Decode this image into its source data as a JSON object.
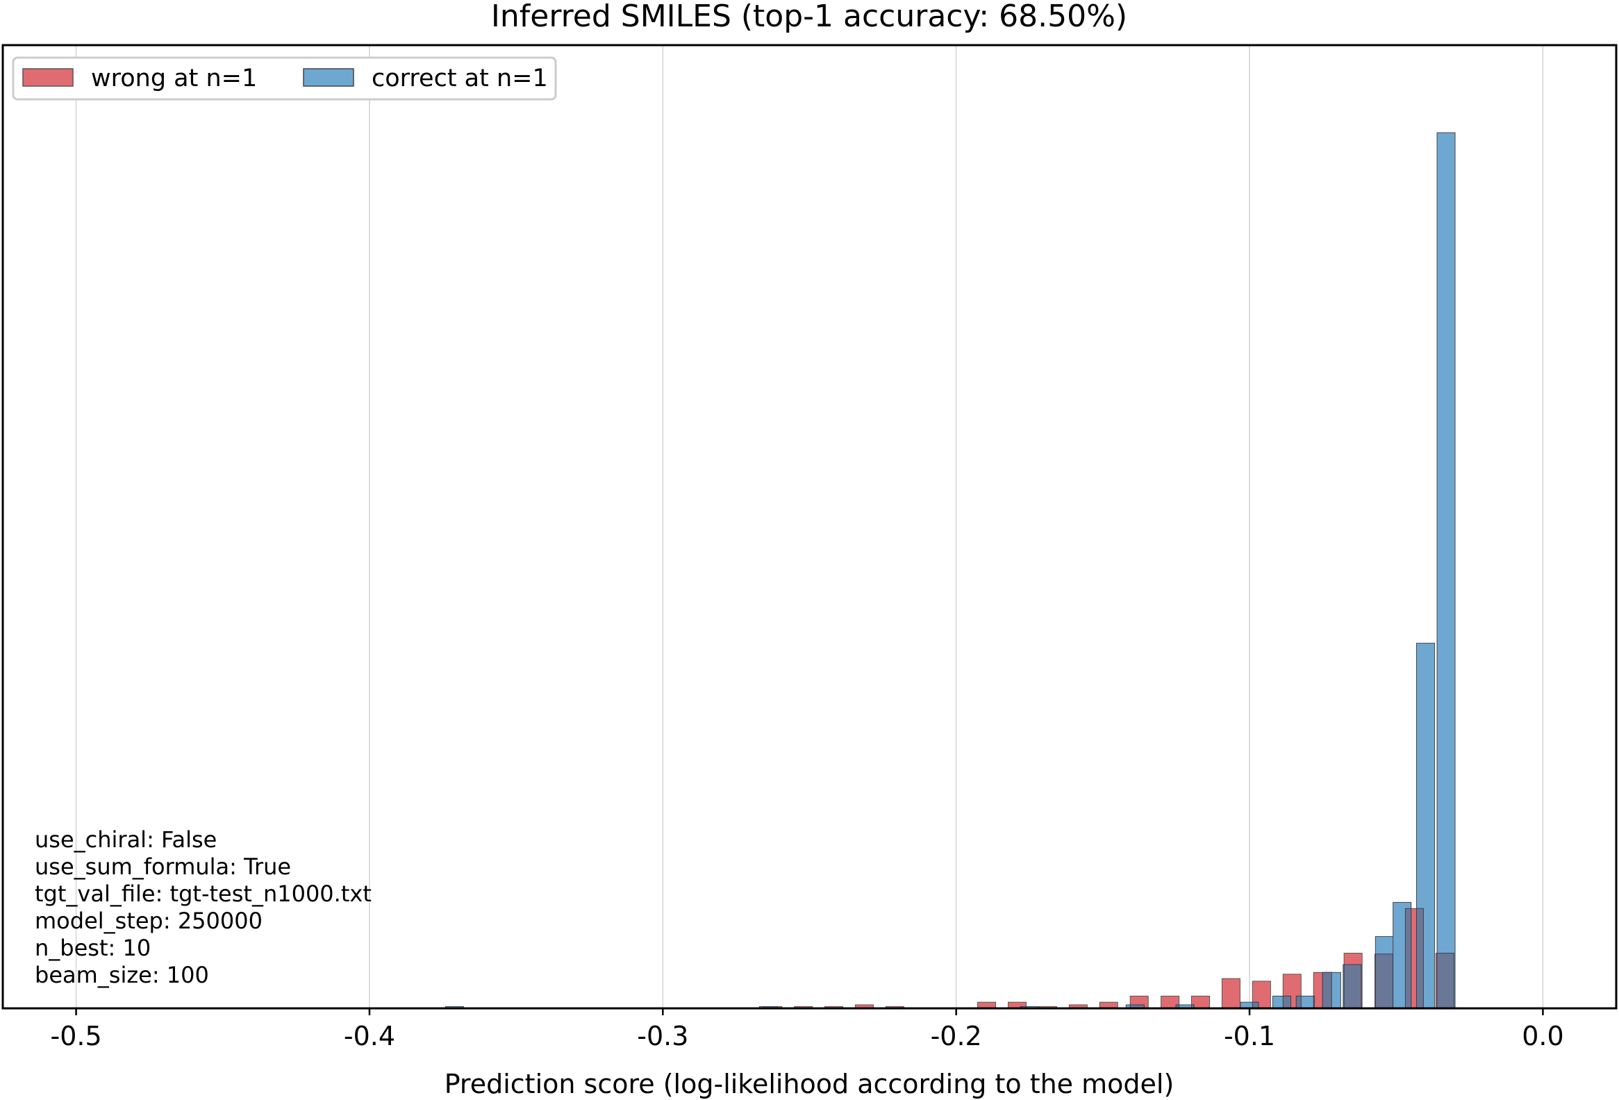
{
  "chart_data": {
    "type": "bar",
    "title": "Inferred SMILES (top-1 accuracy: 68.50%)",
    "xlabel": "Prediction score (log-likelihood according to the model)",
    "ylabel": "",
    "xlim": [
      -0.525,
      0.025
    ],
    "ylim": [
      0,
      1.1
    ],
    "grid": "x",
    "legend": {
      "placement": "top-left",
      "columns": 2
    },
    "xticks": [
      {
        "value": -0.5,
        "label": "-0.5"
      },
      {
        "value": -0.4,
        "label": "-0.4"
      },
      {
        "value": -0.3,
        "label": "-0.3"
      },
      {
        "value": -0.2,
        "label": "-0.2"
      },
      {
        "value": -0.1,
        "label": "-0.1"
      },
      {
        "value": 0.0,
        "label": "0.0"
      }
    ],
    "series": [
      {
        "name": "wrong at n=1",
        "color": "#e06c71",
        "edge": "#555555",
        "points": [
          {
            "x": -0.2625,
            "h": 0.002
          },
          {
            "x": -0.2521,
            "h": 0.002
          },
          {
            "x": -0.2417,
            "h": 0.002
          },
          {
            "x": -0.2313,
            "h": 0.004
          },
          {
            "x": -0.2209,
            "h": 0.002
          },
          {
            "x": -0.1896,
            "h": 0.007
          },
          {
            "x": -0.1792,
            "h": 0.007
          },
          {
            "x": -0.1688,
            "h": 0.002
          },
          {
            "x": -0.1584,
            "h": 0.004
          },
          {
            "x": -0.148,
            "h": 0.007
          },
          {
            "x": -0.1376,
            "h": 0.014
          },
          {
            "x": -0.1271,
            "h": 0.014
          },
          {
            "x": -0.1167,
            "h": 0.014
          },
          {
            "x": -0.1063,
            "h": 0.034
          },
          {
            "x": -0.0959,
            "h": 0.031
          },
          {
            "x": -0.0855,
            "h": 0.039
          },
          {
            "x": -0.0751,
            "h": 0.041
          },
          {
            "x": -0.0647,
            "h": 0.063
          },
          {
            "x": -0.0542,
            "h": 0.062
          },
          {
            "x": -0.0438,
            "h": 0.114
          },
          {
            "x": -0.0334,
            "h": 0.063
          }
        ]
      },
      {
        "name": "correct at n=1",
        "color": "#6ea8d1",
        "edge": "#444444",
        "points": [
          {
            "x": -0.371,
            "h": 0.002
          },
          {
            "x": -0.264,
            "h": 0.002
          },
          {
            "x": -0.175,
            "h": 0.002
          },
          {
            "x": -0.139,
            "h": 0.004
          },
          {
            "x": -0.122,
            "h": 0.004
          },
          {
            "x": -0.1,
            "h": 0.007
          },
          {
            "x": -0.089,
            "h": 0.014
          },
          {
            "x": -0.081,
            "h": 0.014
          },
          {
            "x": -0.072,
            "h": 0.041
          },
          {
            "x": -0.065,
            "h": 0.05
          },
          {
            "x": -0.054,
            "h": 0.082
          },
          {
            "x": -0.048,
            "h": 0.121
          },
          {
            "x": -0.04,
            "h": 0.417
          },
          {
            "x": -0.033,
            "h": 1.0
          }
        ]
      }
    ],
    "annotation_lines": [
      "use_chiral: False",
      "use_sum_formula: True",
      "tgt_val_file: tgt-test_n1000.txt",
      "model_step: 250000",
      "n_best: 10",
      "beam_size: 100"
    ]
  }
}
